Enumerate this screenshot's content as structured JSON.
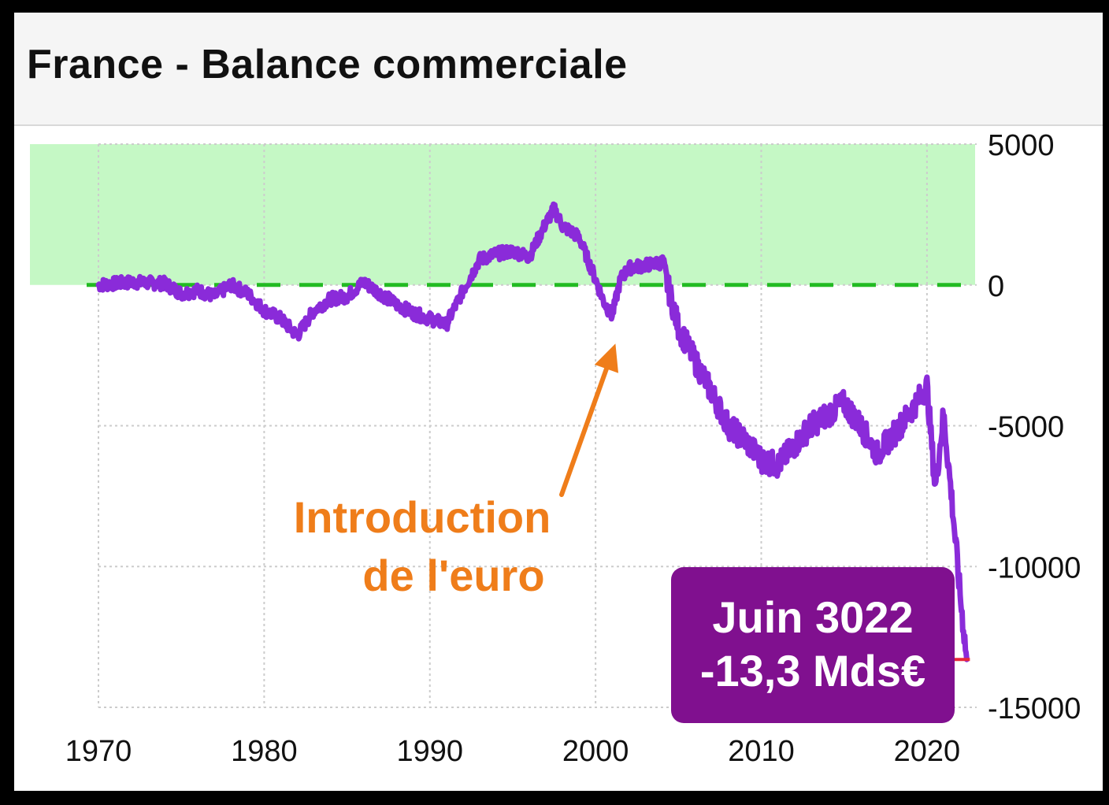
{
  "chart_data": {
    "type": "line",
    "title": "France - Balance commerciale",
    "xlabel": "",
    "ylabel": "",
    "xlim": [
      1970,
      2023
    ],
    "ylim": [
      -15000,
      5000
    ],
    "x_ticks": [
      "1970",
      "1980",
      "1990",
      "2000",
      "2010",
      "2020"
    ],
    "y_ticks": [
      "5000",
      "0",
      "-5000",
      "-10000",
      "-15000"
    ],
    "grid": true,
    "highlight_band": {
      "from": 0,
      "to": 5000,
      "color": "#bff7bf"
    },
    "reference_line": {
      "y": 0,
      "style": "dashed",
      "color": "#22bb22"
    },
    "series": [
      {
        "color": "#8a2bd9",
        "x": [
          1970,
          1972,
          1974,
          1975,
          1976,
          1977,
          1978,
          1979,
          1980,
          1981,
          1982,
          1983,
          1984,
          1985,
          1986,
          1987,
          1988,
          1989,
          1990,
          1991,
          1992,
          1993,
          1994,
          1995,
          1996,
          1997,
          1997.5,
          1998,
          1999,
          2000,
          2000.5,
          2001,
          2001.5,
          2002,
          2003,
          2004,
          2005,
          2006,
          2007,
          2008,
          2009,
          2010,
          2011,
          2012,
          2013,
          2014,
          2015,
          2016,
          2017,
          2018,
          2019,
          2020,
          2020.5,
          2021,
          2021.5,
          2022,
          2022.4
        ],
        "y": [
          0,
          100,
          50,
          -300,
          -200,
          -400,
          0,
          -300,
          -900,
          -1200,
          -1800,
          -900,
          -500,
          -400,
          100,
          -300,
          -700,
          -1000,
          -1200,
          -1400,
          -200,
          900,
          1100,
          1200,
          1000,
          2200,
          2700,
          2100,
          1700,
          200,
          -600,
          -1100,
          200,
          600,
          700,
          800,
          -1500,
          -2700,
          -3800,
          -5000,
          -5500,
          -6200,
          -6400,
          -5700,
          -5000,
          -4600,
          -4200,
          -5000,
          -6000,
          -5300,
          -4500,
          -3600,
          -7200,
          -4600,
          -7600,
          -11000,
          -13300
        ]
      }
    ],
    "annotations": [
      {
        "text_lines": [
          "Introduction",
          "de l'euro"
        ],
        "points_to": {
          "x": 2001.2,
          "y": -1300
        },
        "color": "#ef7d1a"
      },
      {
        "text_lines": [
          "Juin 3022",
          "-13,3 Mds€"
        ],
        "points_to": {
          "x": 2022.4,
          "y": -13300
        },
        "background": "#80108f",
        "marker_color": "#e8283a"
      }
    ]
  }
}
